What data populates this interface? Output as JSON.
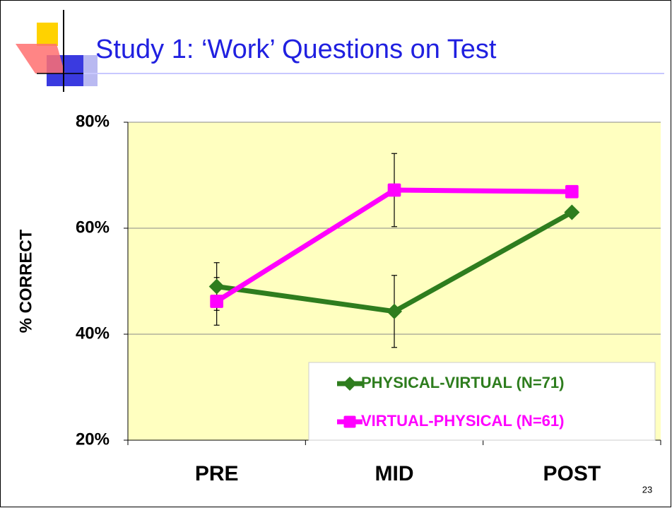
{
  "chart_data": {
    "type": "line",
    "title": "Study 1: ‘Work’ Questions on Test",
    "ylabel": "% CORRECT",
    "categories": [
      "PRE",
      "MID",
      "POST"
    ],
    "series": [
      {
        "name": "PHYSICAL-VIRTUAL (N=71)",
        "color": "#2e7d1e",
        "marker": "diamond",
        "values": [
          49,
          44.3,
          63
        ],
        "errors": [
          4.5,
          6.8,
          null
        ]
      },
      {
        "name": "VIRTUAL-PHYSICAL (N=61)",
        "color": "#ff00ff",
        "marker": "square",
        "values": [
          46.2,
          67.2,
          66.9
        ],
        "errors": [
          4.5,
          6.9,
          null
        ]
      }
    ],
    "ylim": [
      20,
      80
    ],
    "yticks": [
      {
        "value": 20,
        "label": "20%"
      },
      {
        "value": 40,
        "label": "40%"
      },
      {
        "value": 60,
        "label": "60%"
      },
      {
        "value": 80,
        "label": "80%"
      }
    ],
    "grid": true,
    "legend": "lower right",
    "plot_background": "#ffffc0"
  },
  "slide": {
    "number": "23"
  }
}
